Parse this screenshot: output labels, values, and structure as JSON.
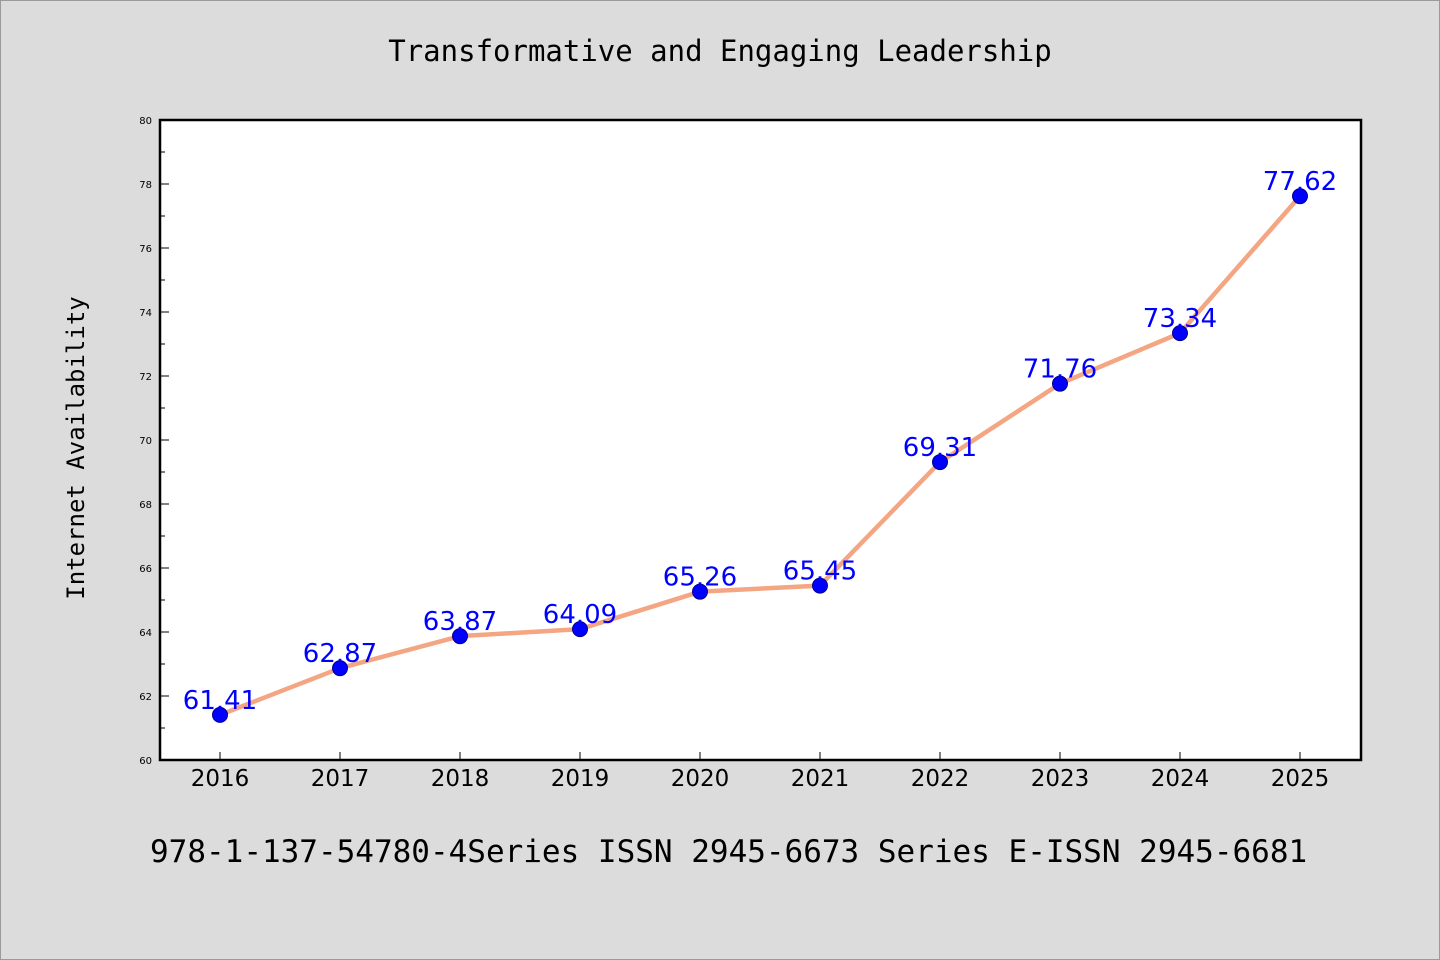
{
  "title": "Transformative and Engaging Leadership",
  "footer": "978-1-137-54780-4Series ISSN 2945-6673 Series E-ISSN 2945-6681",
  "colors": {
    "background": "#dcdcdc",
    "plot_background": "#ffffff",
    "line": "#f4a582",
    "marker": "#0000ff",
    "data_label": "#0000ff"
  },
  "chart_data": {
    "type": "line",
    "title": "Transformative and Engaging Leadership",
    "xlabel": "",
    "ylabel": "Internet Availability",
    "categories": [
      "2016",
      "2017",
      "2018",
      "2019",
      "2020",
      "2021",
      "2022",
      "2023",
      "2024",
      "2025"
    ],
    "values": [
      61.41,
      62.87,
      63.87,
      64.09,
      65.26,
      65.45,
      69.31,
      71.76,
      73.34,
      77.62
    ],
    "data_labels": [
      "61.41",
      "62.87",
      "63.87",
      "64.09",
      "65.26",
      "65.45",
      "69.31",
      "71.76",
      "73.34",
      "77.62"
    ],
    "ylim": [
      60,
      80
    ],
    "yticks": [
      60,
      62,
      64,
      66,
      68,
      70,
      72,
      74,
      76,
      78,
      80
    ],
    "grid": false,
    "legend": "none"
  }
}
